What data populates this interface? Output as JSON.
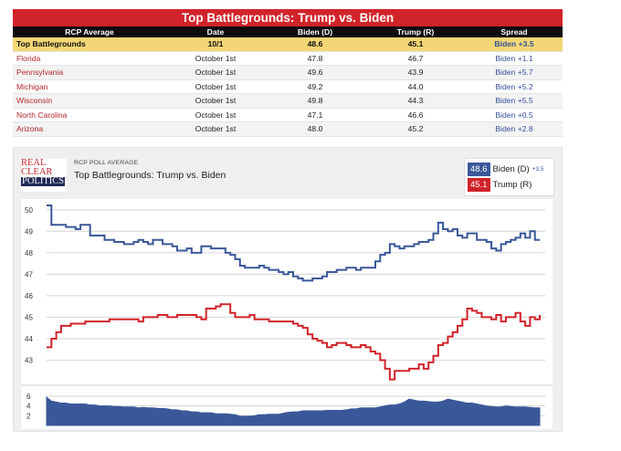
{
  "table": {
    "title": "Top Battlegrounds: Trump vs. Biden",
    "headers": [
      "RCP Average",
      "Date",
      "Biden (D)",
      "Trump (R)",
      "Spread"
    ],
    "average": {
      "label": "Top Battlegrounds",
      "date": "10/1",
      "biden": "48.6",
      "trump": "45.1",
      "spread": "Biden +3.5"
    },
    "rows": [
      {
        "state": "Florida",
        "date": "October 1st",
        "biden": "47.8",
        "trump": "46.7",
        "spread": "Biden +1.1"
      },
      {
        "state": "Pennsylvania",
        "date": "October 1st",
        "biden": "49.6",
        "trump": "43.9",
        "spread": "Biden +5.7"
      },
      {
        "state": "Michigan",
        "date": "October 1st",
        "biden": "49.2",
        "trump": "44.0",
        "spread": "Biden +5.2"
      },
      {
        "state": "Wisconsin",
        "date": "October 1st",
        "biden": "49.8",
        "trump": "44.3",
        "spread": "Biden +5.5"
      },
      {
        "state": "North Carolina",
        "date": "October 1st",
        "biden": "47.1",
        "trump": "46.6",
        "spread": "Biden +0.5"
      },
      {
        "state": "Arizona",
        "date": "October 1st",
        "biden": "48.0",
        "trump": "45.2",
        "spread": "Biden +2.8"
      }
    ]
  },
  "panel": {
    "logo_lines": [
      "REAL",
      "CLEAR",
      "POLITICS"
    ],
    "subtitle": "RCP POLL AVERAGE",
    "title": "Top Battlegrounds: Trump vs. Biden",
    "legend": [
      {
        "value": "48.6",
        "name": "Biden (D)",
        "spread": "+3.5",
        "color": "#3a5899"
      },
      {
        "value": "45.1",
        "name": "Trump (R)",
        "spread": "",
        "color": "#d1232a"
      }
    ]
  },
  "chart_data": {
    "type": "line",
    "y_range": [
      42,
      50.5
    ],
    "y_ticks": [
      43,
      44,
      45,
      46,
      47,
      48,
      49,
      50
    ],
    "series": [
      {
        "name": "Biden (D)",
        "color": "#3a5899",
        "values": [
          50.2,
          49.3,
          49.3,
          49.3,
          49.2,
          49.2,
          49.1,
          49.3,
          49.3,
          48.8,
          48.8,
          48.8,
          48.6,
          48.6,
          48.5,
          48.5,
          48.4,
          48.4,
          48.5,
          48.6,
          48.5,
          48.4,
          48.6,
          48.6,
          48.4,
          48.4,
          48.3,
          48.1,
          48.1,
          48.2,
          48.0,
          48.0,
          48.3,
          48.3,
          48.2,
          48.2,
          48.2,
          48.0,
          47.9,
          47.7,
          47.4,
          47.3,
          47.3,
          47.3,
          47.4,
          47.3,
          47.2,
          47.2,
          47.1,
          47.0,
          47.1,
          46.9,
          46.8,
          46.7,
          46.7,
          46.8,
          46.8,
          46.9,
          47.1,
          47.1,
          47.2,
          47.2,
          47.3,
          47.3,
          47.2,
          47.3,
          47.3,
          47.3,
          47.6,
          47.9,
          48.0,
          48.4,
          48.3,
          48.2,
          48.3,
          48.3,
          48.4,
          48.5,
          48.5,
          48.6,
          48.9,
          49.4,
          49.1,
          49.0,
          49.1,
          48.8,
          48.7,
          48.9,
          48.9,
          48.6,
          48.6,
          48.5,
          48.2,
          48.1,
          48.4,
          48.5,
          48.6,
          48.7,
          48.9,
          48.7,
          49.0,
          48.6,
          48.6
        ]
      },
      {
        "name": "Trump (R)",
        "color": "#d1232a",
        "values": [
          43.6,
          44.0,
          44.3,
          44.6,
          44.6,
          44.7,
          44.7,
          44.7,
          44.8,
          44.8,
          44.8,
          44.8,
          44.8,
          44.9,
          44.9,
          44.9,
          44.9,
          44.9,
          44.9,
          44.8,
          45.0,
          45.0,
          45.0,
          45.1,
          45.1,
          45.0,
          45.0,
          45.1,
          45.1,
          45.1,
          45.1,
          45.0,
          44.9,
          45.4,
          45.4,
          45.5,
          45.6,
          45.6,
          45.2,
          45.0,
          45.0,
          45.0,
          45.1,
          44.9,
          44.9,
          44.9,
          44.8,
          44.8,
          44.8,
          44.8,
          44.8,
          44.7,
          44.6,
          44.5,
          44.2,
          44.0,
          43.9,
          43.8,
          43.6,
          43.7,
          43.8,
          43.8,
          43.7,
          43.6,
          43.6,
          43.7,
          43.6,
          43.4,
          43.3,
          43.0,
          42.6,
          42.1,
          42.5,
          42.5,
          42.5,
          42.6,
          42.6,
          42.8,
          42.6,
          42.9,
          43.2,
          43.7,
          43.8,
          44.1,
          44.3,
          44.6,
          44.9,
          45.4,
          45.3,
          45.2,
          45.0,
          45.0,
          44.9,
          45.1,
          44.8,
          45.0,
          45.0,
          45.2,
          44.8,
          44.6,
          45.0,
          44.9,
          45.1
        ]
      }
    ],
    "volume": {
      "y_ticks": [
        2,
        4,
        6
      ],
      "y_range": [
        0,
        7.5
      ],
      "color": "#3a5899",
      "values": [
        5.8,
        5.0,
        4.8,
        4.6,
        4.6,
        4.4,
        4.4,
        4.4,
        4.4,
        4.2,
        4.2,
        4.0,
        4.0,
        4.0,
        3.9,
        3.9,
        3.8,
        3.8,
        3.8,
        3.6,
        3.7,
        3.6,
        3.6,
        3.5,
        3.5,
        3.4,
        3.2,
        3.2,
        3.0,
        3.0,
        2.8,
        2.8,
        2.6,
        2.6,
        2.6,
        2.4,
        2.4,
        2.4,
        2.3,
        2.2,
        1.9,
        1.9,
        1.9,
        2.0,
        2.2,
        2.2,
        2.3,
        2.3,
        2.3,
        2.5,
        2.7,
        2.8,
        2.8,
        3.0,
        3.0,
        3.0,
        3.0,
        3.0,
        3.1,
        3.1,
        3.1,
        3.1,
        3.2,
        3.4,
        3.4,
        3.6,
        3.6,
        3.6,
        3.6,
        3.8,
        4.0,
        4.2,
        4.2,
        4.4,
        4.8,
        5.4,
        5.2,
        5.0,
        5.0,
        4.9,
        4.8,
        4.8,
        5.0,
        5.4,
        5.2,
        5.0,
        4.8,
        4.6,
        4.6,
        4.4,
        4.2,
        4.0,
        3.9,
        3.8,
        3.8,
        4.0,
        3.9,
        3.8,
        3.8,
        3.8,
        3.7,
        3.6,
        3.6
      ]
    }
  }
}
